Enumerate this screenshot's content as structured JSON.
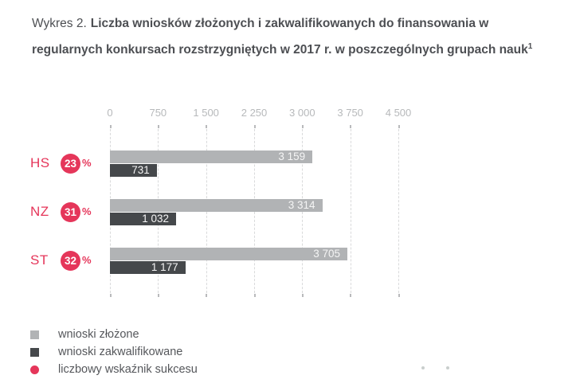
{
  "title": {
    "prefix": "Wykres 2.",
    "main": "Liczba wniosków złożonych i zakwalifikowanych do finansowania w regularnych konkursach rozstrzygniętych w 2017 r. w poszczególnych grupach nauk",
    "footnote_marker": "1"
  },
  "chart_data": {
    "type": "bar",
    "orientation": "horizontal",
    "categories": [
      "HS",
      "NZ",
      "ST"
    ],
    "series": [
      {
        "name": "wnioski złożone",
        "color": "#b1b3b5",
        "values": [
          3159,
          3314,
          3705
        ]
      },
      {
        "name": "wnioski zakwalifikowane",
        "color": "#45484b",
        "values": [
          731,
          1032,
          1177
        ]
      }
    ],
    "success_rate_pct": {
      "name": "liczbowy wskaźnik sukcesu",
      "color": "#e5365a",
      "values": [
        23,
        31,
        32
      ]
    },
    "xlim": [
      0,
      4500
    ],
    "xticks": [
      "0",
      "750",
      "1 500",
      "2 250",
      "3 000",
      "3 750",
      "4 500"
    ],
    "grid": "dashed-vertical",
    "legend_position": "bottom-left",
    "value_label_color": "#f5f5f5"
  },
  "rows": [
    {
      "category": "HS",
      "rate": "23",
      "pct_sign": "%",
      "submitted_label": "3 159",
      "qualified_label": "731"
    },
    {
      "category": "NZ",
      "rate": "31",
      "pct_sign": "%",
      "submitted_label": "3 314",
      "qualified_label": "1 032"
    },
    {
      "category": "ST",
      "rate": "32",
      "pct_sign": "%",
      "submitted_label": "3 705",
      "qualified_label": "1 177"
    }
  ],
  "legend": {
    "items": [
      {
        "label": "wnioski złożone",
        "swatch": "square",
        "color": "#b1b3b5"
      },
      {
        "label": "wnioski zakwalifikowane",
        "swatch": "square",
        "color": "#45484b"
      },
      {
        "label": "liczbowy wskaźnik sukcesu",
        "swatch": "circle",
        "color": "#e5365a"
      }
    ]
  }
}
